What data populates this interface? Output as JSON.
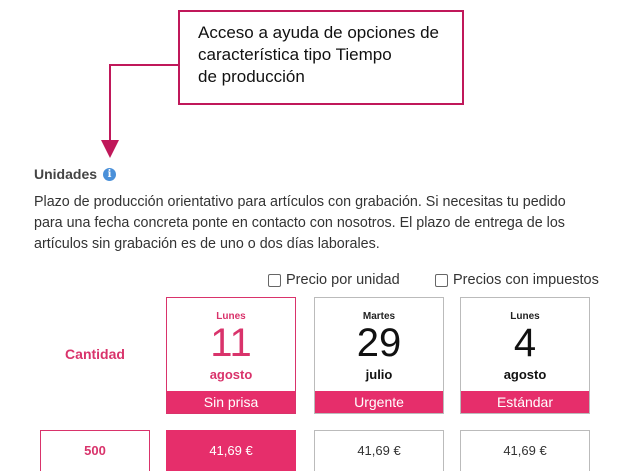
{
  "callout": {
    "lines": [
      "Acceso a ayuda de opciones  de",
      "característica tipo Tiempo",
      "de producción"
    ],
    "color": "#c0185a"
  },
  "section": {
    "title": "Unidades",
    "info_icon": "info-icon",
    "description": [
      "Plazo de producción orientativo para artículos con grabación. Si necesitas tu pedido",
      "para una fecha concreta ponte en contacto con nosotros. El plazo de entrega de los",
      "artículos sin grabación es de uno o dos días laborales."
    ]
  },
  "options": {
    "price_per_unit": "Precio por unidad",
    "price_with_tax": "Precios con impuestos"
  },
  "table": {
    "quantity_label": "Cantidad",
    "accent_color": "#e62e6b",
    "delivery_options": [
      {
        "weekday": "Lunes",
        "day": "11",
        "month": "agosto",
        "label": "Sin prisa",
        "selected": true
      },
      {
        "weekday": "Martes",
        "day": "29",
        "month": "julio",
        "label": "Urgente",
        "selected": false
      },
      {
        "weekday": "Lunes",
        "day": "4",
        "month": "agosto",
        "label": "Estándar",
        "selected": false
      }
    ],
    "rows": [
      {
        "quantity": "500",
        "prices": [
          "41,69 €",
          "41,69 €",
          "41,69 €"
        ]
      }
    ]
  }
}
